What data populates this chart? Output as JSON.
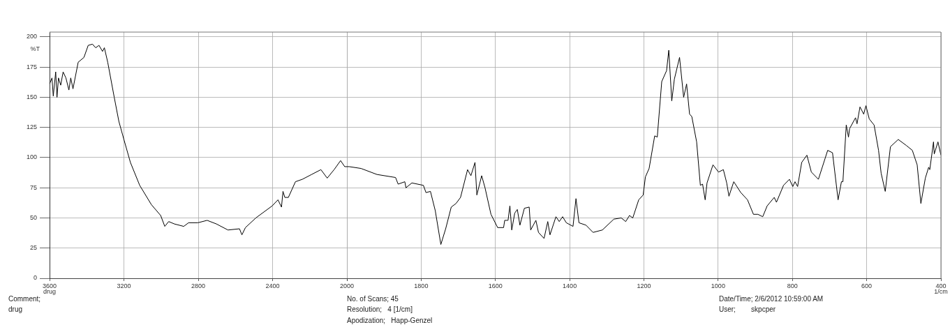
{
  "chart_data": [
    {
      "type": "line",
      "ylabel": "%T",
      "annotations": [
        "drug",
        "Comment;",
        "drug",
        "No. of Scans; 45",
        "Resolution;   4 [1/cm]",
        "Apodization;   Happ-Genzel",
        "Date/Time; 2/6/2012 10:59:00 AM",
        "User;        skpcper"
      ],
      "x": [
        3600,
        3587,
        3580,
        3567,
        3560,
        3552,
        3540,
        3527,
        3512,
        3496,
        3486,
        3474,
        3446,
        3415,
        3392,
        3369,
        3352,
        3334,
        3315,
        3305,
        3287,
        3252,
        3227,
        3200,
        3165,
        3115,
        3052,
        3002,
        2980,
        2959,
        2928,
        2878,
        2852,
        2802,
        2752,
        2702,
        2640,
        2578,
        2565,
        2546,
        2490,
        2402,
        2371,
        2352,
        2344,
        2334,
        2315,
        2277,
        2240,
        2190,
        2140,
        2106,
        2069,
        2034,
        2012,
        2000
      ],
      "values": [
        161,
        166,
        151,
        171,
        150,
        166,
        160,
        171,
        166,
        156,
        166,
        157,
        179,
        183,
        193,
        194,
        191,
        193,
        188,
        191,
        179,
        150,
        130,
        115,
        96,
        77,
        61,
        52,
        43,
        47,
        45,
        43,
        46,
        46,
        48,
        45,
        40,
        41,
        36,
        42,
        50,
        60,
        65,
        59,
        72,
        67,
        67,
        80,
        82,
        86,
        90,
        83,
        90,
        97.5,
        92.5,
        92.5
      ],
      "color": "#000000",
      "xlim": [
        3600,
        2000
      ],
      "ylim": [
        0,
        204
      ],
      "xticks": [
        3600,
        3200,
        2800,
        2400,
        2000
      ],
      "yticks": [
        0,
        25,
        50,
        75,
        100,
        125,
        150,
        175,
        200
      ],
      "grid": true
    },
    {
      "type": "line",
      "xlabel": "1/cm",
      "x": [
        2000,
        1994,
        1962,
        1919,
        1869,
        1862,
        1844,
        1841,
        1825,
        1794,
        1787,
        1775,
        1762,
        1747,
        1734,
        1719,
        1706,
        1694,
        1675,
        1666,
        1655,
        1650,
        1637,
        1628,
        1612,
        1594,
        1578,
        1575,
        1566,
        1561,
        1556,
        1548,
        1541,
        1534,
        1522,
        1509,
        1505,
        1491,
        1484,
        1469,
        1459,
        1453,
        1437,
        1428,
        1419,
        1409,
        1391,
        1383,
        1375,
        1356,
        1337,
        1312,
        1281,
        1261,
        1249,
        1239,
        1230,
        1214,
        1202,
        1196,
        1186,
        1171,
        1164,
        1152,
        1139,
        1133,
        1125,
        1118,
        1104,
        1093,
        1085,
        1077,
        1071,
        1058,
        1048,
        1042,
        1035,
        1030,
        1014,
        999,
        986,
        977,
        971,
        958,
        939,
        921,
        905,
        893,
        880,
        868,
        849,
        843,
        824,
        808,
        799,
        793,
        786,
        775,
        761,
        749,
        730,
        705,
        692,
        677,
        668,
        664,
        655,
        649,
        646,
        630,
        626,
        618,
        608,
        602,
        593,
        580,
        568,
        561,
        550,
        536,
        515,
        493,
        477,
        464,
        454,
        442,
        433,
        430,
        420,
        418,
        408,
        400
      ],
      "values": [
        92.5,
        92.5,
        91,
        86,
        83.5,
        78,
        80,
        75,
        79,
        77,
        71,
        72,
        56,
        28,
        41,
        59,
        62,
        67,
        90,
        85,
        96,
        69,
        85,
        75,
        53,
        42,
        42,
        48,
        48,
        60,
        40,
        54,
        57,
        44,
        58,
        59,
        40,
        48,
        38,
        33,
        47,
        36,
        51,
        47,
        51,
        46,
        43,
        66,
        46,
        44,
        38,
        40,
        49,
        50,
        47,
        52,
        50,
        65,
        69,
        84,
        91,
        118,
        117,
        163,
        172,
        189,
        147,
        165,
        183,
        150,
        161,
        136,
        134,
        113,
        77,
        78,
        65,
        79,
        94,
        88,
        90,
        79,
        68,
        80,
        71,
        65,
        53,
        53,
        51,
        60,
        67,
        63,
        77,
        82,
        76,
        80,
        76,
        96,
        102,
        88,
        82,
        106,
        104,
        65,
        80,
        80,
        127,
        117,
        124,
        133,
        128,
        142,
        136,
        143,
        132,
        127,
        106,
        87,
        72,
        109,
        115,
        110,
        106,
        94,
        62,
        83,
        92,
        90,
        113,
        103,
        113,
        102
      ],
      "color": "#000000",
      "xlim": [
        2000,
        400
      ],
      "ylim": [
        0,
        204
      ],
      "xticks": [
        {
          "value": 2000,
          "label": null
        },
        1800,
        1600,
        1400,
        1200,
        1000,
        800,
        600,
        400
      ],
      "yticks": [
        0,
        25,
        50,
        75,
        100,
        125,
        150,
        175,
        200
      ],
      "grid": true,
      "tick_labels": "x"
    }
  ]
}
